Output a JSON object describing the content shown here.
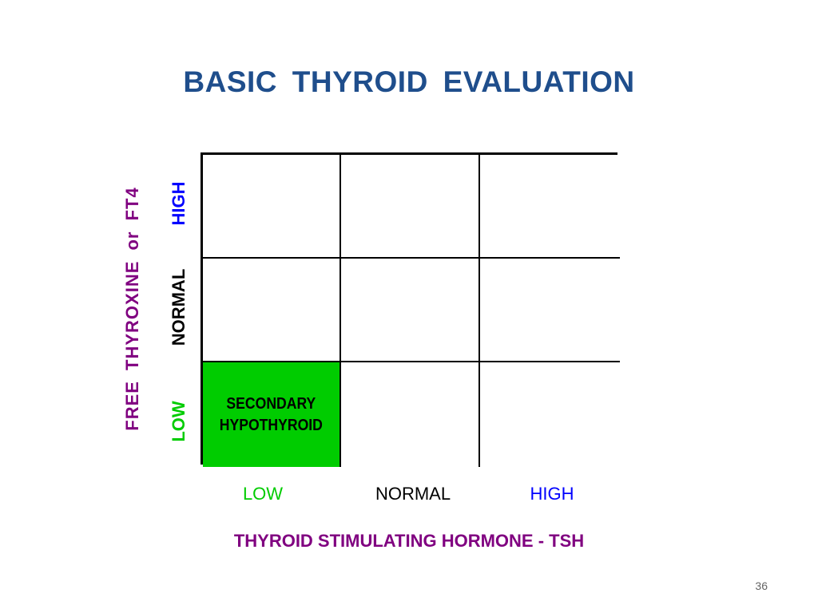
{
  "slide": {
    "title": "BASIC  THYROID  EVALUATION",
    "page_number": "36"
  },
  "x_axis": {
    "title": "THYROID STIMULATING HORMONE - TSH",
    "labels": [
      {
        "text": "LOW",
        "color": "#00cc00"
      },
      {
        "text": "NORMAL",
        "color": "#000000"
      },
      {
        "text": "HIGH",
        "color": "#0000ff"
      }
    ]
  },
  "y_axis": {
    "title": "FREE  THYROXINE  or  FT4",
    "labels": [
      {
        "text": "HIGH",
        "color": "#0000ff"
      },
      {
        "text": "NORMAL",
        "color": "#000000"
      },
      {
        "text": "LOW",
        "color": "#00cc00"
      }
    ]
  },
  "grid": {
    "highlight_color": "#00cc00",
    "cells": [
      [
        "",
        "",
        ""
      ],
      [
        "",
        "",
        ""
      ],
      [
        "SECONDARY\nHYPOTHYROID",
        "",
        ""
      ]
    ]
  }
}
